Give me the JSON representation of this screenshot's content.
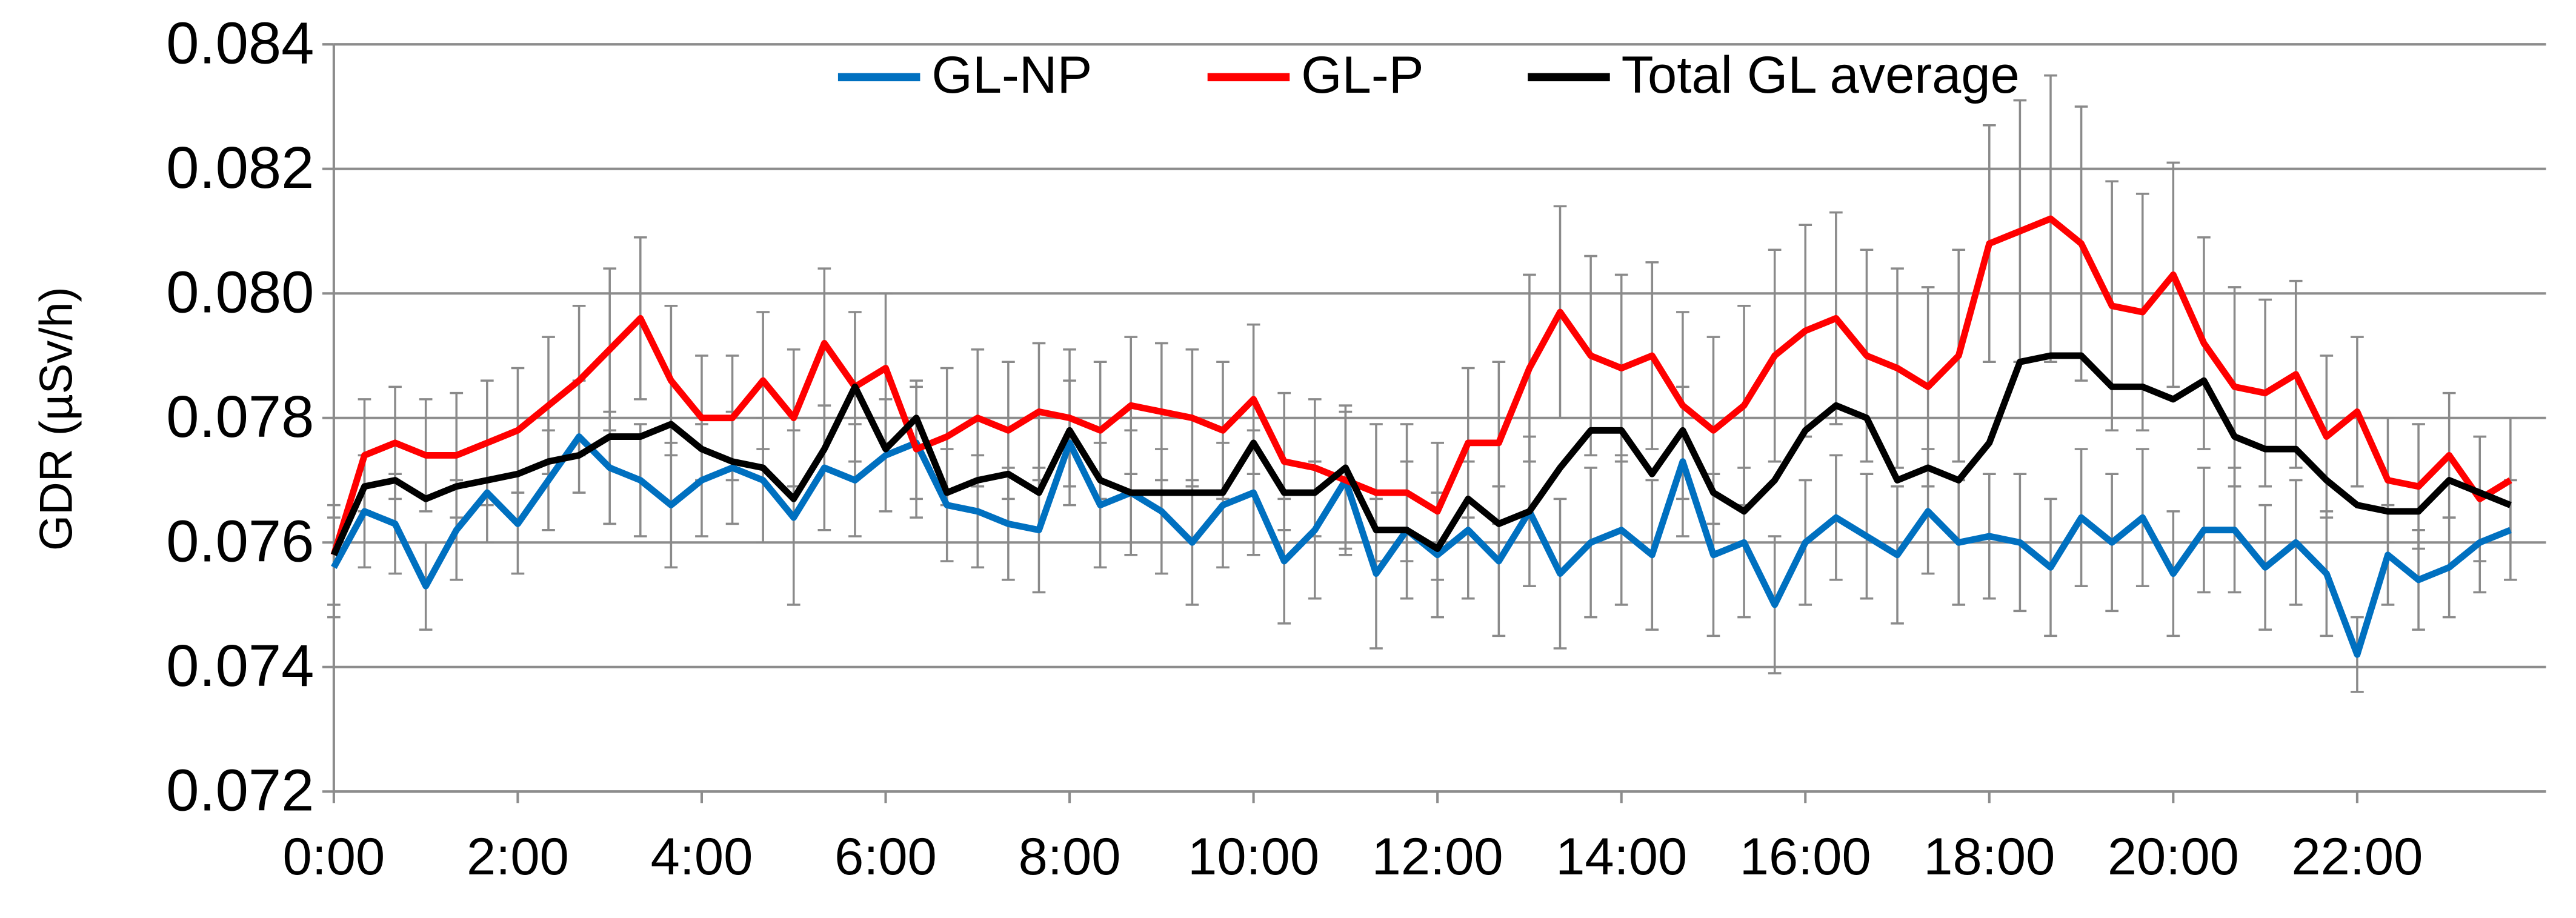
{
  "chart_data": {
    "type": "line",
    "y_label": "GDR (µSv/h)",
    "categories": [
      "0:00",
      null,
      null,
      null,
      null,
      null,
      "2:00",
      null,
      null,
      null,
      null,
      null,
      "4:00",
      null,
      null,
      null,
      null,
      null,
      "6:00",
      null,
      null,
      null,
      null,
      null,
      "8:00",
      null,
      null,
      null,
      null,
      null,
      "10:00",
      null,
      null,
      null,
      null,
      null,
      "12:00",
      null,
      null,
      null,
      null,
      null,
      "14:00",
      null,
      null,
      null,
      null,
      null,
      "16:00",
      null,
      null,
      null,
      null,
      null,
      "18:00",
      null,
      null,
      null,
      null,
      null,
      "20:00",
      null,
      null,
      null,
      null,
      null,
      "22:00",
      null,
      null,
      null,
      null,
      null
    ],
    "series": [
      {
        "name": "GL-NP",
        "color": "#0070c0",
        "values": [
          0.0756,
          0.0765,
          0.0763,
          0.0753,
          0.0762,
          0.0768,
          0.0763,
          0.077,
          0.0777,
          0.0772,
          0.077,
          0.0766,
          0.077,
          0.0772,
          0.077,
          0.0764,
          0.0772,
          0.077,
          0.0774,
          0.0776,
          0.0766,
          0.0765,
          0.0763,
          0.0762,
          0.0776,
          0.0766,
          0.0768,
          0.0765,
          0.076,
          0.0766,
          0.0768,
          0.0757,
          0.0762,
          0.077,
          0.0755,
          0.0762,
          0.0758,
          0.0762,
          0.0757,
          0.0765,
          0.0755,
          0.076,
          0.0762,
          0.0758,
          0.0773,
          0.0758,
          0.076,
          0.075,
          0.076,
          0.0764,
          0.0761,
          0.0758,
          0.0765,
          0.076,
          0.0761,
          0.076,
          0.0756,
          0.0764,
          0.076,
          0.0764,
          0.0755,
          0.0762,
          0.0762,
          0.0756,
          0.076,
          0.0755,
          0.0742,
          0.0758,
          0.0754,
          0.0756,
          0.076,
          0.0762
        ],
        "errors": [
          0.0008,
          0.0009,
          0.0008,
          0.0007,
          0.0008,
          0.0008,
          0.0008,
          0.0008,
          0.0009,
          0.0009,
          0.0009,
          0.001,
          0.0009,
          0.0009,
          0.001,
          0.0014,
          0.001,
          0.0009,
          0.0009,
          0.0009,
          0.0009,
          0.0009,
          0.0009,
          0.001,
          0.001,
          0.001,
          0.001,
          0.001,
          0.001,
          0.001,
          0.001,
          0.001,
          0.0011,
          0.0012,
          0.0012,
          0.0011,
          0.001,
          0.0011,
          0.0012,
          0.0012,
          0.0012,
          0.0012,
          0.0012,
          0.0012,
          0.0012,
          0.0013,
          0.0012,
          0.0011,
          0.001,
          0.001,
          0.001,
          0.0011,
          0.001,
          0.001,
          0.001,
          0.0011,
          0.0011,
          0.0011,
          0.0011,
          0.0011,
          0.001,
          0.001,
          0.001,
          0.001,
          0.001,
          0.001,
          0.0006,
          0.0008,
          0.0008,
          0.0008,
          0.0008,
          0.0008
        ]
      },
      {
        "name": "GL-P",
        "color": "#ff0000",
        "values": [
          0.0758,
          0.0774,
          0.0776,
          0.0774,
          0.0774,
          0.0776,
          0.0778,
          0.0782,
          0.0786,
          0.0791,
          0.0796,
          0.0786,
          0.078,
          0.078,
          0.0786,
          0.078,
          0.0792,
          0.0785,
          0.0788,
          0.0775,
          0.0777,
          0.078,
          0.0778,
          0.0781,
          0.078,
          0.0778,
          0.0782,
          0.0781,
          0.078,
          0.0778,
          0.0783,
          0.0773,
          0.0772,
          0.077,
          0.0768,
          0.0768,
          0.0765,
          0.0776,
          0.0776,
          0.0788,
          0.0797,
          0.079,
          0.0788,
          0.079,
          0.0782,
          0.0778,
          0.0782,
          0.079,
          0.0794,
          0.0796,
          0.079,
          0.0788,
          0.0785,
          0.079,
          0.0808,
          0.081,
          0.0812,
          0.0808,
          0.0798,
          0.0797,
          0.0803,
          0.0792,
          0.0785,
          0.0784,
          0.0787,
          0.0777,
          0.0781,
          0.077,
          0.0769,
          0.0774,
          0.0767,
          0.077
        ],
        "errors": [
          0.0008,
          0.0009,
          0.0009,
          0.0009,
          0.001,
          0.001,
          0.001,
          0.0011,
          0.0012,
          0.0013,
          0.0013,
          0.0012,
          0.001,
          0.001,
          0.0011,
          0.0011,
          0.0012,
          0.0012,
          0.0012,
          0.0011,
          0.0011,
          0.0011,
          0.0011,
          0.0011,
          0.0011,
          0.0011,
          0.0011,
          0.0011,
          0.0011,
          0.0011,
          0.0012,
          0.0011,
          0.0011,
          0.0011,
          0.0011,
          0.0011,
          0.0011,
          0.0012,
          0.0013,
          0.0015,
          0.0017,
          0.0016,
          0.0015,
          0.0015,
          0.0015,
          0.0015,
          0.0016,
          0.0017,
          0.0017,
          0.0017,
          0.0017,
          0.0016,
          0.0016,
          0.0017,
          0.0019,
          0.0021,
          0.0023,
          0.0022,
          0.002,
          0.0019,
          0.0018,
          0.0017,
          0.0016,
          0.0015,
          0.0015,
          0.0013,
          0.0012,
          0.001,
          0.001,
          0.001,
          0.001,
          0.001
        ]
      },
      {
        "name": "Total GL average",
        "color": "#000000",
        "values": [
          0.0758,
          0.0769,
          0.077,
          0.0767,
          0.0769,
          0.077,
          0.0771,
          0.0773,
          0.0774,
          0.0777,
          0.0777,
          0.0779,
          0.0775,
          0.0773,
          0.0772,
          0.0767,
          0.0775,
          0.0785,
          0.0775,
          0.078,
          0.0768,
          0.077,
          0.0771,
          0.0768,
          0.0778,
          0.077,
          0.0768,
          0.0768,
          0.0768,
          0.0768,
          0.0776,
          0.0768,
          0.0768,
          0.0772,
          0.0762,
          0.0762,
          0.0759,
          0.0767,
          0.0763,
          0.0765,
          0.0772,
          0.0778,
          0.0778,
          0.0771,
          0.0778,
          0.0768,
          0.0765,
          0.077,
          0.0778,
          0.0782,
          0.078,
          0.077,
          0.0772,
          0.077,
          0.0776,
          0.0789,
          0.079,
          0.079,
          0.0785,
          0.0785,
          0.0783,
          0.0786,
          0.0777,
          0.0775,
          0.0775,
          0.077,
          0.0766,
          0.0765,
          0.0765,
          0.077,
          0.0768,
          0.0766
        ]
      }
    ],
    "ylim": [
      0.072,
      0.084
    ],
    "yticks": [
      {
        "value": 0.072,
        "label": "0.072"
      },
      {
        "value": 0.074,
        "label": "0.074"
      },
      {
        "value": 0.076,
        "label": "0.076"
      },
      {
        "value": 0.078,
        "label": "0.078"
      },
      {
        "value": 0.08,
        "label": "0.080"
      },
      {
        "value": 0.082,
        "label": "0.082"
      },
      {
        "value": 0.084,
        "label": "0.084"
      }
    ],
    "grid": true,
    "legend": "top"
  }
}
